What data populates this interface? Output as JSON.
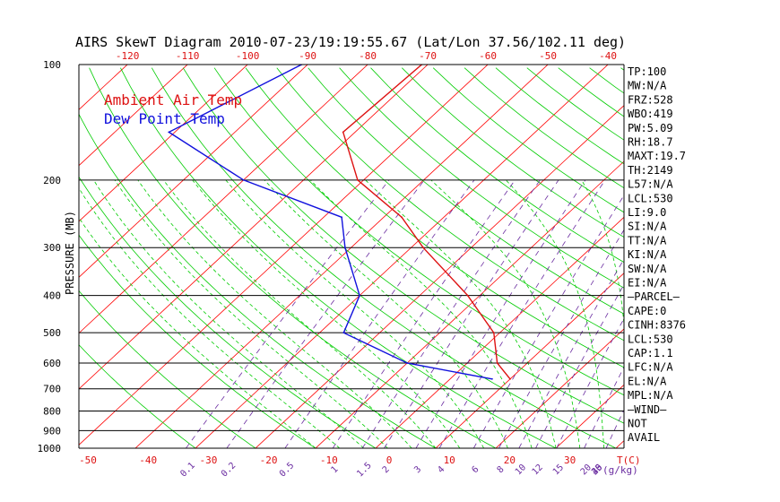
{
  "chart_data": {
    "type": "line",
    "chart_kind": "skew-t log-p",
    "title": "AIRS SkewT Diagram 2010-07-23/19:19:55.67 (Lat/Lon 37.56/102.11 deg)",
    "ylabel": "PRESSURE (MB)",
    "ylim": [
      1000,
      100
    ],
    "yscale": "log",
    "pressure_ticks": [
      100,
      200,
      300,
      400,
      500,
      600,
      700,
      800,
      900,
      1000
    ],
    "isobar_levels": [
      200,
      300,
      400,
      500,
      600,
      700,
      800,
      900,
      1000
    ],
    "top_temp_labels": [
      -120,
      -110,
      -100,
      -90,
      -80,
      -70,
      -60,
      -50,
      -40
    ],
    "bottom_temp_labels": [
      -50,
      -40,
      -30,
      -20,
      -10,
      0,
      10,
      20,
      30
    ],
    "bottom_unit_label": "T(C)",
    "mixing_ratio_labels": [
      0.1,
      0.2,
      0.5,
      1,
      1.5,
      2,
      3,
      4,
      6,
      8,
      10,
      12,
      15,
      20,
      25,
      30,
      40
    ],
    "mixing_ratio_unit": "(g/kg)",
    "legend": [
      {
        "name": "Ambient Air Temp",
        "color": "#dd1111"
      },
      {
        "name": "Dew Point Temp",
        "color": "#1111dd"
      }
    ],
    "colors": {
      "isotherm": "#ff0000",
      "dry_adiabat": "#00cc00",
      "moist_adiabat": "#00cc00",
      "mixing_ratio": "#6a2ca0",
      "isobar": "#000000",
      "axis_text": "#000000",
      "temp_label": "#dd1111",
      "mixing_label": "#6a2ca0"
    },
    "series": [
      {
        "name": "Ambient Air Temp",
        "color": "#dd1111",
        "points": [
          {
            "p": 100,
            "t": -71
          },
          {
            "p": 150,
            "t": -72
          },
          {
            "p": 200,
            "t": -61
          },
          {
            "p": 250,
            "t": -47
          },
          {
            "p": 300,
            "t": -38
          },
          {
            "p": 400,
            "t": -22
          },
          {
            "p": 500,
            "t": -11
          },
          {
            "p": 600,
            "t": -5
          },
          {
            "p": 660,
            "t": 0
          }
        ]
      },
      {
        "name": "Dew Point Temp",
        "color": "#1111dd",
        "points": [
          {
            "p": 100,
            "t": -91
          },
          {
            "p": 150,
            "t": -101
          },
          {
            "p": 200,
            "t": -80
          },
          {
            "p": 250,
            "t": -57
          },
          {
            "p": 300,
            "t": -51
          },
          {
            "p": 400,
            "t": -40
          },
          {
            "p": 500,
            "t": -36
          },
          {
            "p": 600,
            "t": -20
          },
          {
            "p": 660,
            "t": -3
          }
        ]
      }
    ],
    "stats": [
      "TP:100",
      "MW:N/A",
      "FRZ:528",
      "WBO:419",
      "PW:5.09",
      "RH:18.7",
      "MAXT:19.7",
      "TH:2149",
      "L57:N/A",
      "LCL:530",
      "LI:9.0",
      "SI:N/A",
      "TT:N/A",
      "KI:N/A",
      "SW:N/A",
      "EI:N/A",
      "—PARCEL—",
      "CAPE:0",
      "CINH:8376",
      "LCL:530",
      "CAP:1.1",
      "LFC:N/A",
      "EL:N/A",
      "MPL:N/A",
      "—WIND—",
      "NOT",
      "AVAIL"
    ]
  }
}
